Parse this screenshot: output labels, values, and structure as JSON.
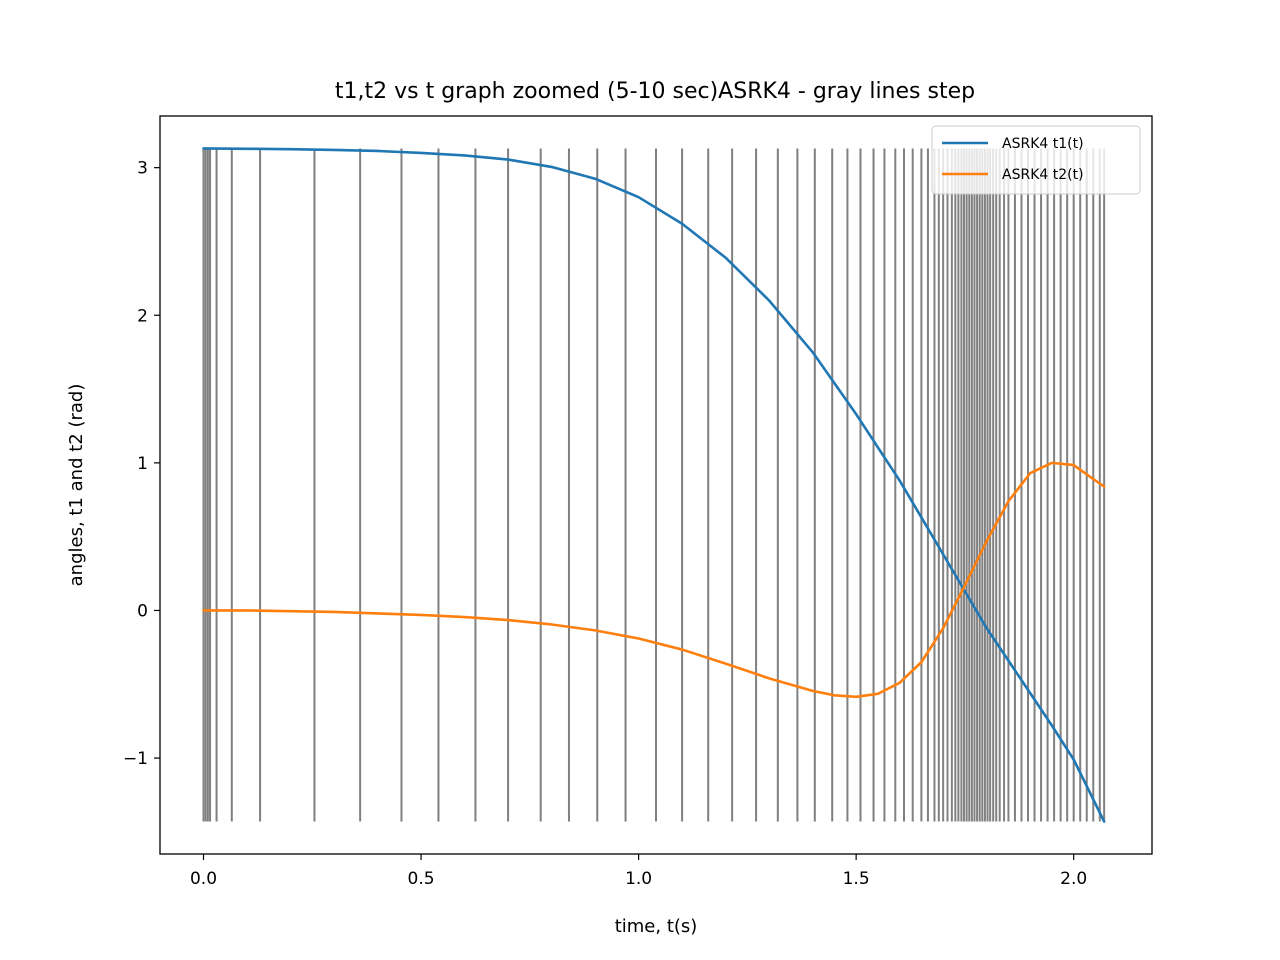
{
  "chart_data": {
    "type": "line",
    "title": "t1,t2 vs t graph zoomed (5-10 sec)ASRK4 - gray lines step",
    "xlabel": "time, t(s)",
    "ylabel": "angles, t1 and t2 (rad)",
    "xlim": [
      -0.1,
      2.18
    ],
    "ylim": [
      -1.65,
      3.35
    ],
    "xticks": [
      0.0,
      0.5,
      1.0,
      1.5,
      2.0
    ],
    "xtick_labels": [
      "0.0",
      "0.5",
      "1.0",
      "1.5",
      "2.0"
    ],
    "yticks": [
      -1,
      0,
      1,
      2,
      3
    ],
    "ytick_labels": [
      "−1",
      "0",
      "1",
      "2",
      "3"
    ],
    "legend_position": "upper right",
    "grid": false,
    "series": [
      {
        "name": "ASRK4 t1(t)",
        "color": "#1f77b4",
        "x": [
          0.0,
          0.1,
          0.2,
          0.3,
          0.4,
          0.5,
          0.6,
          0.7,
          0.8,
          0.9,
          1.0,
          1.1,
          1.2,
          1.3,
          1.4,
          1.5,
          1.6,
          1.65,
          1.7,
          1.75,
          1.8,
          1.85,
          1.9,
          1.95,
          2.0,
          2.07
        ],
        "y": [
          3.13,
          3.128,
          3.125,
          3.12,
          3.113,
          3.1,
          3.083,
          3.055,
          3.005,
          2.925,
          2.8,
          2.62,
          2.39,
          2.1,
          1.75,
          1.33,
          0.88,
          0.63,
          0.38,
          0.13,
          -0.12,
          -0.34,
          -0.56,
          -0.78,
          -1.01,
          -1.43
        ]
      },
      {
        "name": "ASRK4 t2(t)",
        "color": "#ff7f0e",
        "x": [
          0.0,
          0.1,
          0.2,
          0.3,
          0.4,
          0.5,
          0.6,
          0.7,
          0.8,
          0.9,
          1.0,
          1.1,
          1.2,
          1.3,
          1.4,
          1.45,
          1.5,
          1.55,
          1.6,
          1.65,
          1.7,
          1.75,
          1.8,
          1.85,
          1.9,
          1.95,
          2.0,
          2.05,
          2.07
        ],
        "y": [
          0.0,
          0.0,
          -0.005,
          -0.01,
          -0.02,
          -0.03,
          -0.045,
          -0.065,
          -0.095,
          -0.135,
          -0.19,
          -0.265,
          -0.36,
          -0.46,
          -0.545,
          -0.575,
          -0.585,
          -0.565,
          -0.49,
          -0.35,
          -0.12,
          0.17,
          0.47,
          0.74,
          0.93,
          1.0,
          0.985,
          0.88,
          0.84
        ]
      }
    ],
    "step_lines": {
      "color": "#808080",
      "y_range": [
        -1.43,
        3.13
      ],
      "x": [
        0.0,
        0.005,
        0.01,
        0.015,
        0.03,
        0.065,
        0.13,
        0.255,
        0.36,
        0.455,
        0.54,
        0.625,
        0.7,
        0.775,
        0.84,
        0.905,
        0.97,
        1.04,
        1.1,
        1.16,
        1.215,
        1.27,
        1.32,
        1.365,
        1.405,
        1.445,
        1.48,
        1.51,
        1.54,
        1.565,
        1.59,
        1.61,
        1.63,
        1.65,
        1.665,
        1.68,
        1.69,
        1.7,
        1.71,
        1.72,
        1.728,
        1.735,
        1.742,
        1.748,
        1.754,
        1.76,
        1.766,
        1.772,
        1.778,
        1.784,
        1.79,
        1.796,
        1.802,
        1.808,
        1.815,
        1.822,
        1.83,
        1.84,
        1.85,
        1.865,
        1.88,
        1.895,
        1.91,
        1.925,
        1.94,
        1.955,
        1.97,
        1.985,
        2.0,
        2.015,
        2.03,
        2.045,
        2.06,
        2.07
      ]
    }
  }
}
